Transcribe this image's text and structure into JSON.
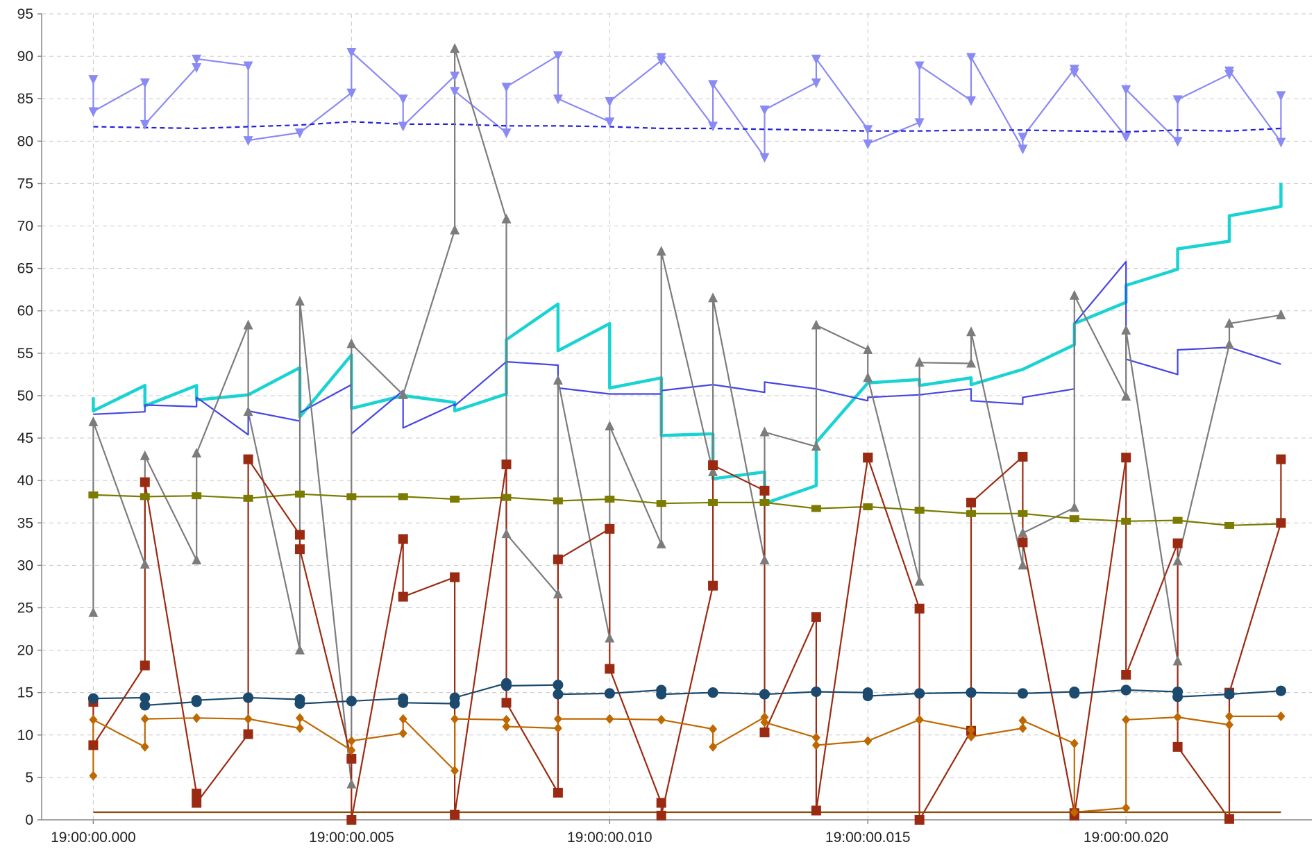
{
  "chart_data": {
    "type": "line",
    "title": "",
    "xlabel": "",
    "ylabel": "",
    "x": [
      0,
      1,
      2,
      3,
      4,
      5,
      6,
      7,
      8,
      9,
      10,
      11,
      12,
      13,
      14,
      15,
      16,
      17,
      18,
      19,
      20,
      21,
      22,
      23
    ],
    "x_tick_labels": [
      {
        "x": 0,
        "label": "19:00:00.000"
      },
      {
        "x": 5,
        "label": "19:00:00.005"
      },
      {
        "x": 10,
        "label": "19:00:00.010"
      },
      {
        "x": 15,
        "label": "19:00:00.015"
      },
      {
        "x": 20,
        "label": "19:00:00.020"
      }
    ],
    "xlim": [
      -1,
      23.6
    ],
    "ylim": [
      0,
      95
    ],
    "yticks": [
      0,
      5,
      10,
      15,
      20,
      25,
      30,
      35,
      40,
      45,
      50,
      55,
      60,
      65,
      70,
      75,
      80,
      85,
      90,
      95
    ],
    "grid": true,
    "legend": "none",
    "series": [
      {
        "id": "light-blue-down-triangles",
        "color": "#8a8af5",
        "marker": "triangle-down",
        "line_style": "solid",
        "step_pairs": [
          [
            87.3,
            83.5
          ],
          [
            86.9,
            82.0
          ],
          [
            88.7,
            89.7
          ],
          [
            88.9,
            80.1
          ],
          [
            81.0,
            81.0
          ],
          [
            85.7,
            90.5
          ],
          [
            85.0,
            81.8
          ],
          [
            87.7,
            85.9
          ],
          [
            81.0,
            86.4
          ],
          [
            90.1,
            85.0
          ],
          [
            82.3,
            84.7
          ],
          [
            89.5,
            89.9
          ],
          [
            81.8,
            86.7
          ],
          [
            78.1,
            83.7
          ],
          [
            86.9,
            89.7
          ],
          [
            81.4,
            79.7
          ],
          [
            82.2,
            88.9
          ],
          [
            84.8,
            89.9
          ],
          [
            79.1,
            80.5
          ],
          [
            88.5,
            88.1
          ],
          [
            80.5,
            86.1
          ],
          [
            80.0,
            84.9
          ],
          [
            87.9,
            88.3
          ],
          [
            79.9,
            85.4
          ]
        ]
      },
      {
        "id": "blue-dashed",
        "color": "#1f1fdc",
        "line_style": "dashed",
        "values": [
          81.7,
          81.6,
          81.5,
          81.7,
          81.9,
          82.3,
          82.0,
          82.0,
          81.8,
          81.8,
          81.7,
          81.5,
          81.5,
          81.4,
          81.3,
          81.2,
          81.2,
          81.3,
          81.3,
          81.2,
          81.1,
          81.3,
          81.2,
          81.5
        ]
      },
      {
        "id": "cyan-thick",
        "color": "#19d3d3",
        "line_style": "solid",
        "step_pairs": [
          [
            49.8,
            48.2
          ],
          [
            51.2,
            48.8
          ],
          [
            51.2,
            49.5
          ],
          [
            50.1,
            50.1
          ],
          [
            53.3,
            47.5
          ],
          [
            54.8,
            48.5
          ],
          [
            50.0,
            50.0
          ],
          [
            49.2,
            48.2
          ],
          [
            50.2,
            56.6
          ],
          [
            60.8,
            55.3
          ],
          [
            58.5,
            50.9
          ],
          [
            52.1,
            45.3
          ],
          [
            45.5,
            40.2
          ],
          [
            41.0,
            37.3
          ],
          [
            39.4,
            44.5
          ],
          [
            51.5,
            51.5
          ],
          [
            51.9,
            51.2
          ],
          [
            52.1,
            51.3
          ],
          [
            53.1,
            53.1
          ],
          [
            56.0,
            58.5
          ],
          [
            61.0,
            63.0
          ],
          [
            64.9,
            67.3
          ],
          [
            68.2,
            71.2
          ],
          [
            72.3,
            75.1
          ]
        ]
      },
      {
        "id": "blue-solid",
        "color": "#4545e6",
        "line_style": "solid",
        "step_pairs": [
          [
            47.8,
            47.8
          ],
          [
            48.1,
            48.9
          ],
          [
            48.7,
            49.8
          ],
          [
            45.4,
            48.2
          ],
          [
            47.0,
            48.0
          ],
          [
            51.3,
            45.5
          ],
          [
            50.6,
            46.2
          ],
          [
            49.0,
            48.8
          ],
          [
            54.0,
            54.0
          ],
          [
            53.6,
            50.9
          ],
          [
            50.2,
            50.2
          ],
          [
            50.2,
            50.6
          ],
          [
            51.3,
            51.3
          ],
          [
            50.4,
            51.6
          ],
          [
            50.8,
            50.8
          ],
          [
            49.4,
            49.8
          ],
          [
            50.1,
            50.1
          ],
          [
            50.8,
            49.4
          ],
          [
            49.0,
            49.8
          ],
          [
            50.8,
            58.5
          ],
          [
            65.8,
            54.3
          ],
          [
            52.5,
            55.4
          ],
          [
            55.7,
            55.7
          ],
          [
            53.7,
            53.7
          ]
        ]
      },
      {
        "id": "gray-up-triangles",
        "color": "#7c7c7c",
        "marker": "triangle-up",
        "line_style": "solid",
        "step_pairs": [
          [
            24.4,
            46.9
          ],
          [
            30.1,
            42.9
          ],
          [
            30.6,
            43.2
          ],
          [
            58.3,
            48.1
          ],
          [
            20.0,
            61.1
          ],
          [
            4.2,
            56.1
          ],
          [
            50.1,
            50.1
          ],
          [
            69.5,
            90.9
          ],
          [
            70.8,
            33.7
          ],
          [
            26.6,
            51.8
          ],
          [
            21.4,
            46.4
          ],
          [
            32.5,
            67.0
          ],
          [
            41.0,
            61.5
          ],
          [
            30.6,
            45.7
          ],
          [
            44.0,
            58.3
          ],
          [
            55.4,
            52.1
          ],
          [
            28.1,
            53.9
          ],
          [
            53.8,
            57.5
          ],
          [
            30.0,
            33.8
          ],
          [
            36.8,
            61.8
          ],
          [
            49.9,
            57.7
          ],
          [
            18.7,
            30.5
          ],
          [
            56.0,
            58.5
          ],
          [
            59.5,
            59.5
          ]
        ]
      },
      {
        "id": "olive-squares",
        "color": "#7b7b00",
        "marker": "square-small",
        "line_style": "solid",
        "values": [
          38.3,
          38.1,
          38.2,
          37.9,
          38.4,
          38.1,
          38.1,
          37.8,
          38.0,
          37.6,
          37.8,
          37.3,
          37.4,
          37.4,
          36.7,
          36.9,
          36.5,
          36.1,
          36.1,
          35.5,
          35.2,
          35.3,
          34.7,
          34.9
        ]
      },
      {
        "id": "red-squares",
        "color": "#9b2a12",
        "marker": "square",
        "line_style": "solid",
        "step_pairs": [
          [
            13.9,
            8.8
          ],
          [
            18.2,
            39.8
          ],
          [
            3.1,
            2.0
          ],
          [
            10.1,
            42.5
          ],
          [
            33.6,
            31.9
          ],
          [
            7.2,
            0.0
          ],
          [
            33.1,
            26.3
          ],
          [
            28.6,
            0.6
          ],
          [
            41.9,
            13.8
          ],
          [
            3.2,
            30.7
          ],
          [
            34.3,
            17.8
          ],
          [
            2.0,
            0.5
          ],
          [
            27.6,
            41.8
          ],
          [
            38.8,
            10.3
          ],
          [
            23.9,
            1.1
          ],
          [
            42.7,
            42.7
          ],
          [
            24.9,
            0.0
          ],
          [
            10.5,
            37.4
          ],
          [
            42.8,
            32.7
          ],
          [
            0.8,
            0.5
          ],
          [
            42.7,
            17.1
          ],
          [
            32.6,
            8.6
          ],
          [
            0.1,
            15.0
          ],
          [
            35.0,
            42.5
          ]
        ]
      },
      {
        "id": "navy-circles",
        "color": "#1b4a6e",
        "marker": "circle",
        "line_style": "solid",
        "step_pairs": [
          [
            14.3,
            14.3
          ],
          [
            14.4,
            13.5
          ],
          [
            13.9,
            14.1
          ],
          [
            14.4,
            14.4
          ],
          [
            14.2,
            13.7
          ],
          [
            14.0,
            14.0
          ],
          [
            14.3,
            13.8
          ],
          [
            13.7,
            14.4
          ],
          [
            16.1,
            15.8
          ],
          [
            15.9,
            14.8
          ],
          [
            14.9,
            14.9
          ],
          [
            15.3,
            14.8
          ],
          [
            15.0,
            15.0
          ],
          [
            14.8,
            14.8
          ],
          [
            15.1,
            15.1
          ],
          [
            15.0,
            14.6
          ],
          [
            14.9,
            14.9
          ],
          [
            15.0,
            15.0
          ],
          [
            14.9,
            14.9
          ],
          [
            15.1,
            14.9
          ],
          [
            15.3,
            15.3
          ],
          [
            15.1,
            14.5
          ],
          [
            14.8,
            14.8
          ],
          [
            15.2,
            15.2
          ]
        ]
      },
      {
        "id": "orange-diamonds",
        "color": "#c06800",
        "marker": "diamond",
        "line_style": "solid",
        "step_pairs": [
          [
            5.2,
            11.8
          ],
          [
            8.6,
            11.9
          ],
          [
            12.0,
            12.0
          ],
          [
            11.9,
            11.9
          ],
          [
            10.8,
            12.0
          ],
          [
            8.2,
            9.3
          ],
          [
            10.2,
            11.9
          ],
          [
            5.8,
            11.9
          ],
          [
            11.8,
            11.0
          ],
          [
            10.8,
            11.9
          ],
          [
            11.9,
            11.9
          ],
          [
            11.8,
            11.8
          ],
          [
            10.7,
            8.6
          ],
          [
            12.1,
            11.5
          ],
          [
            9.7,
            8.8
          ],
          [
            9.3,
            9.3
          ],
          [
            11.8,
            11.8
          ],
          [
            10.6,
            9.8
          ],
          [
            10.8,
            11.7
          ],
          [
            9.0,
            0.9
          ],
          [
            1.4,
            11.8
          ],
          [
            12.1,
            12.1
          ],
          [
            11.2,
            12.2
          ],
          [
            12.2,
            12.2
          ]
        ]
      },
      {
        "id": "brown-baseline",
        "color": "#8b4e0a",
        "line_style": "solid",
        "values": [
          0.9,
          0.9,
          0.9,
          0.9,
          0.9,
          0.9,
          0.9,
          0.9,
          0.9,
          0.9,
          0.9,
          0.9,
          0.9,
          0.9,
          0.9,
          0.9,
          0.9,
          0.9,
          0.9,
          0.9,
          0.9,
          0.9,
          0.9,
          0.9
        ]
      }
    ]
  }
}
